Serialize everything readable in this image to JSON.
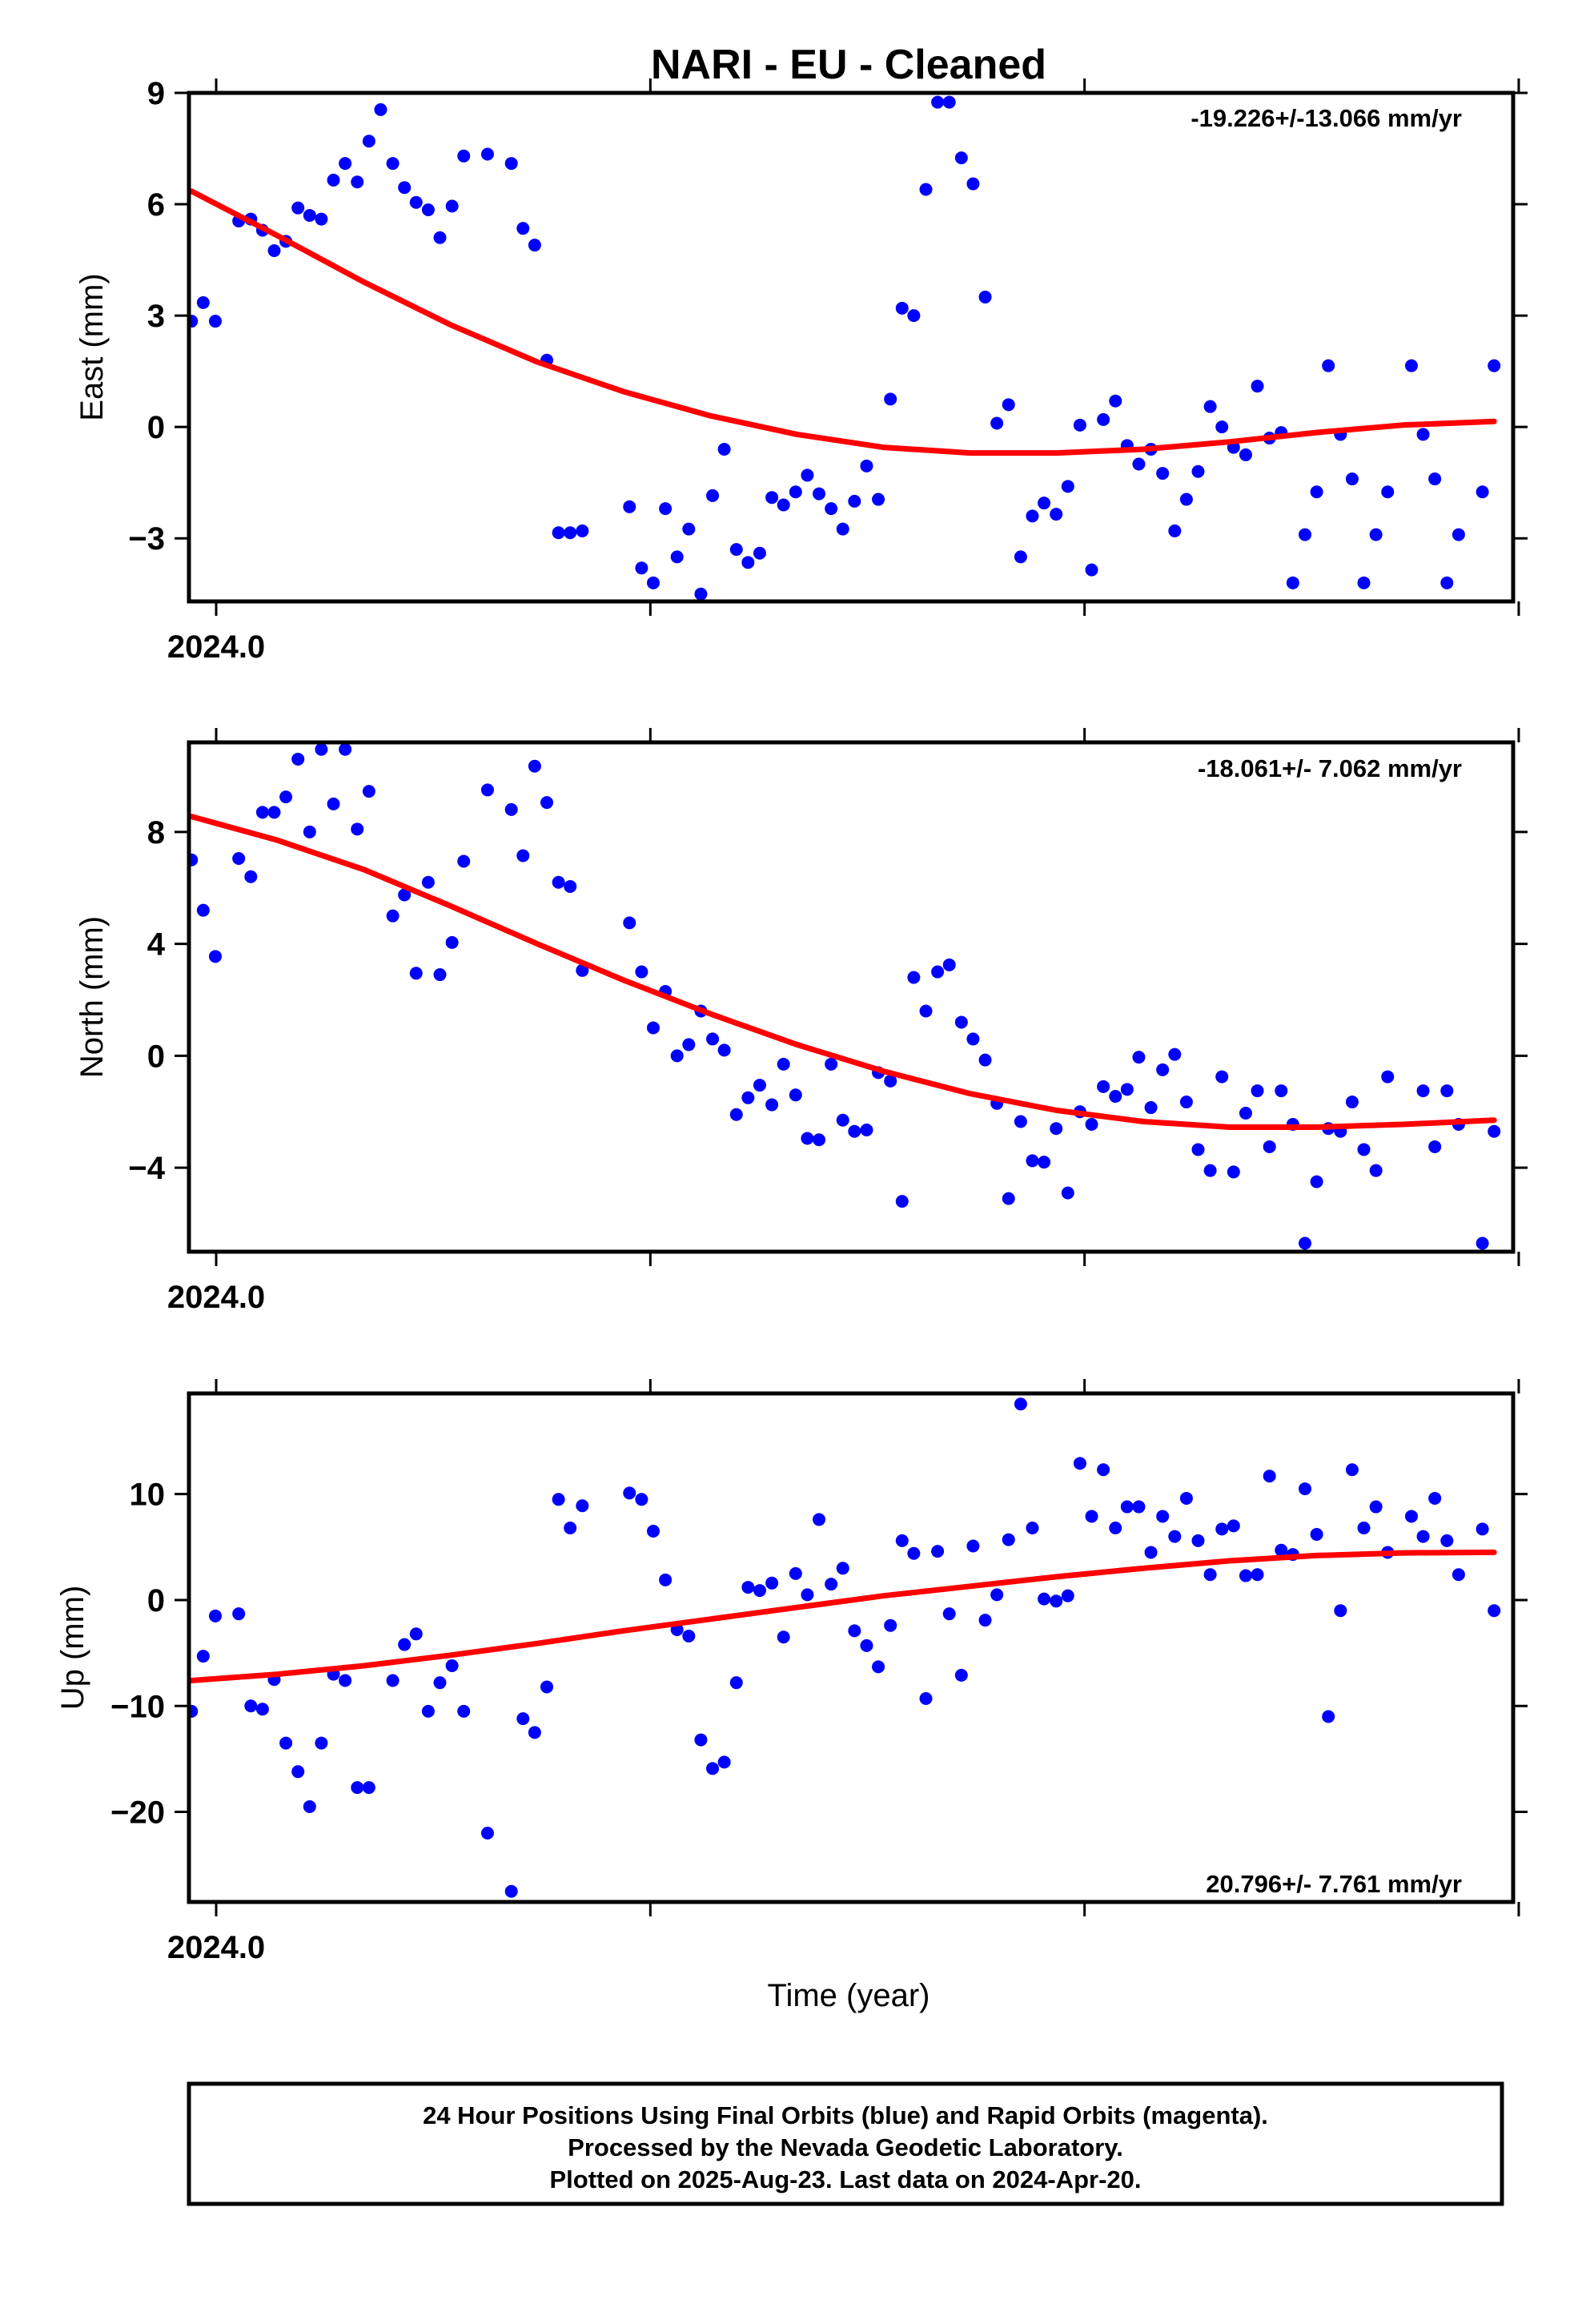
{
  "title": "NARI  - EU - Cleaned",
  "xlabel": "Time (year)",
  "footer_lines": [
    "24 Hour Positions Using Final Orbits (blue) and Rapid Orbits (magenta).",
    "Processed by the Nevada Geodetic Laboratory.",
    "Plotted on 2025-Aug-23. Last data on 2024-Apr-20."
  ],
  "colors": {
    "points": "#0000ff",
    "trend": "#ff0000",
    "frame": "#000000"
  },
  "chart_data": [
    {
      "type": "scatter",
      "ylabel": "East (mm)",
      "rate_label": "-19.226+/-13.066 mm/yr",
      "x_tick_label": "2024.0",
      "xlim": [
        2023.9995,
        2024.3055
      ],
      "ylim": [
        -4.7,
        9.0
      ],
      "yticks": [
        {
          "v": 9,
          "label": "9"
        },
        {
          "v": 6,
          "label": "6"
        },
        {
          "v": 3,
          "label": "3"
        },
        {
          "v": 0,
          "label": "0"
        },
        {
          "v": -3,
          "label": "−3"
        }
      ],
      "x": [
        2024.0001,
        2024.0028,
        2024.0056,
        2024.011,
        2024.0138,
        2024.0165,
        2024.0192,
        2024.0219,
        2024.0247,
        2024.0274,
        2024.0301,
        2024.0329,
        2024.0356,
        2024.0384,
        2024.0411,
        2024.0438,
        2024.0466,
        2024.0493,
        2024.052,
        2024.0548,
        2024.0575,
        2024.0603,
        2024.063,
        2024.0685,
        2024.074,
        2024.0767,
        2024.0794,
        2024.0822,
        2024.0849,
        2024.0876,
        2024.0904,
        2024.1013,
        2024.1041,
        2024.1068,
        2024.1096,
        2024.1123,
        2024.115,
        2024.1178,
        2024.1205,
        2024.1232,
        2024.126,
        2024.1287,
        2024.1314,
        2024.1342,
        2024.1369,
        2024.1397,
        2024.1424,
        2024.1451,
        2024.1479,
        2024.1506,
        2024.1533,
        2024.1561,
        2024.1588,
        2024.1616,
        2024.1643,
        2024.167,
        2024.1698,
        2024.1725,
        2024.1752,
        2024.178,
        2024.1807,
        2024.1835,
        2024.1862,
        2024.1889,
        2024.1917,
        2024.1944,
        2024.1971,
        2024.1999,
        2024.2026,
        2024.2054,
        2024.2081,
        2024.2108,
        2024.2136,
        2024.2163,
        2024.219,
        2024.2218,
        2024.2245,
        2024.2273,
        2024.23,
        2024.2327,
        2024.2355,
        2024.2382,
        2024.2409,
        2024.2437,
        2024.2464,
        2024.2492,
        2024.2519,
        2024.2546,
        2024.2574,
        2024.2601,
        2024.2628,
        2024.2656,
        2024.2683,
        2024.271,
        2024.2738,
        2024.2765,
        2024.282,
        2024.2847,
        2024.2874,
        2024.2902,
        2024.2929,
        2024.2984,
        2024.3011
      ],
      "y": [
        2.85,
        3.35,
        2.85,
        5.55,
        5.6,
        5.3,
        4.75,
        5.0,
        5.9,
        5.7,
        5.6,
        6.65,
        7.1,
        6.6,
        7.7,
        8.55,
        7.1,
        6.45,
        6.05,
        5.85,
        5.1,
        5.95,
        7.3,
        7.35,
        7.1,
        5.35,
        4.9,
        1.8,
        -2.85,
        -2.85,
        -2.8,
        -2.15,
        -3.8,
        -4.2,
        -2.2,
        -3.5,
        -2.75,
        -4.5,
        -1.85,
        -0.6,
        -3.3,
        -3.65,
        -3.4,
        -1.9,
        -2.1,
        -1.75,
        -1.3,
        -1.8,
        -2.2,
        -2.75,
        -2.0,
        -1.05,
        -1.95,
        0.75,
        3.2,
        3.0,
        6.4,
        8.75,
        8.75,
        7.25,
        6.55,
        3.5,
        0.1,
        0.6,
        -3.5,
        -2.4,
        -2.05,
        -2.35,
        -1.6,
        0.05,
        -3.85,
        0.2,
        0.7,
        -0.5,
        -1.0,
        -0.6,
        -1.25,
        -2.8,
        -1.95,
        -1.2,
        0.55,
        0.0,
        -0.55,
        -0.75,
        1.1,
        -0.3,
        -0.15,
        -4.2,
        -2.9,
        -1.75,
        1.65,
        -0.2,
        -1.4,
        -4.2,
        -2.9,
        -1.75,
        1.65,
        -0.2,
        -1.4,
        -4.2,
        -2.9,
        -1.75,
        1.65
      ],
      "trend_x": [
        2024.0001,
        2024.02,
        2024.04,
        2024.06,
        2024.08,
        2024.1,
        2024.12,
        2024.14,
        2024.16,
        2024.18,
        2024.2,
        2024.22,
        2024.24,
        2024.26,
        2024.28,
        2024.3011
      ],
      "trend_y": [
        6.35,
        5.15,
        3.9,
        2.75,
        1.75,
        0.95,
        0.3,
        -0.2,
        -0.55,
        -0.7,
        -0.7,
        -0.6,
        -0.4,
        -0.15,
        0.05,
        0.15
      ]
    },
    {
      "type": "scatter",
      "ylabel": "North (mm)",
      "rate_label": "-18.061+/- 7.062 mm/yr",
      "x_tick_label": "2024.0",
      "xlim": [
        2023.9995,
        2024.3055
      ],
      "ylim": [
        -7.0,
        11.2
      ],
      "yticks": [
        {
          "v": 8,
          "label": "8"
        },
        {
          "v": 4,
          "label": "4"
        },
        {
          "v": 0,
          "label": "0"
        },
        {
          "v": -4,
          "label": "−4"
        }
      ],
      "x": [
        2024.0001,
        2024.0028,
        2024.0056,
        2024.011,
        2024.0138,
        2024.0165,
        2024.0192,
        2024.0219,
        2024.0247,
        2024.0274,
        2024.0301,
        2024.0329,
        2024.0356,
        2024.0384,
        2024.0411,
        2024.0466,
        2024.0493,
        2024.052,
        2024.0548,
        2024.0575,
        2024.0603,
        2024.063,
        2024.0685,
        2024.074,
        2024.0767,
        2024.0794,
        2024.0822,
        2024.0849,
        2024.0876,
        2024.0904,
        2024.1013,
        2024.1041,
        2024.1068,
        2024.1096,
        2024.1123,
        2024.115,
        2024.1178,
        2024.1205,
        2024.1232,
        2024.126,
        2024.1287,
        2024.1314,
        2024.1342,
        2024.1369,
        2024.1397,
        2024.1424,
        2024.1451,
        2024.1479,
        2024.1506,
        2024.1533,
        2024.1561,
        2024.1588,
        2024.1616,
        2024.1643,
        2024.167,
        2024.1698,
        2024.1725,
        2024.1752,
        2024.178,
        2024.1807,
        2024.1835,
        2024.1862,
        2024.1889,
        2024.1917,
        2024.1944,
        2024.1971,
        2024.1999,
        2024.2026,
        2024.2054,
        2024.2081,
        2024.2108,
        2024.2136,
        2024.2163,
        2024.219,
        2024.2218,
        2024.2245,
        2024.2273,
        2024.23,
        2024.2327,
        2024.2355,
        2024.2382,
        2024.2409,
        2024.2437,
        2024.2464,
        2024.2492,
        2024.2519,
        2024.2546,
        2024.2574,
        2024.2601,
        2024.2628,
        2024.2656,
        2024.2683,
        2024.271,
        2024.2738,
        2024.2765,
        2024.2847,
        2024.2874,
        2024.2902,
        2024.2929,
        2024.2984,
        2024.3011
      ],
      "y": [
        7.0,
        5.2,
        3.55,
        7.05,
        6.4,
        8.7,
        8.7,
        9.25,
        10.6,
        8.0,
        10.95,
        9.0,
        10.95,
        8.1,
        9.45,
        5.0,
        5.75,
        2.95,
        6.2,
        2.9,
        4.05,
        6.95,
        9.5,
        8.8,
        7.15,
        10.35,
        9.05,
        6.2,
        6.05,
        3.05,
        4.75,
        3.0,
        1.0,
        2.3,
        0.0,
        0.4,
        1.6,
        0.6,
        0.2,
        -2.1,
        -1.5,
        -1.05,
        -1.75,
        -0.3,
        -1.4,
        -2.95,
        -3.0,
        -0.3,
        -2.3,
        -2.7,
        -2.65,
        -0.6,
        -0.9,
        -5.2,
        2.8,
        1.6,
        3.0,
        3.25,
        1.2,
        0.6,
        -0.15,
        -1.7,
        -5.1,
        -2.35,
        -3.75,
        -3.8,
        -2.6,
        -4.9,
        -2.0,
        -2.45,
        -1.1,
        -1.45,
        -1.2,
        -0.05,
        -1.85,
        -0.5,
        0.05,
        -1.65,
        -3.35,
        -4.1,
        -0.75,
        -4.15,
        -2.05,
        -1.25,
        -3.25,
        -1.25,
        -2.45,
        -6.7,
        -4.5,
        -2.6,
        -2.7,
        -1.65,
        -3.35,
        -4.1,
        -0.75,
        -1.25,
        -3.25,
        -1.25,
        -2.45,
        -6.7,
        -2.7
      ],
      "trend_x": [
        2024.0001,
        2024.02,
        2024.04,
        2024.06,
        2024.08,
        2024.1,
        2024.12,
        2024.14,
        2024.16,
        2024.18,
        2024.2,
        2024.22,
        2024.24,
        2024.26,
        2024.28,
        2024.3011
      ],
      "trend_y": [
        8.55,
        7.7,
        6.65,
        5.35,
        4.0,
        2.7,
        1.5,
        0.4,
        -0.55,
        -1.35,
        -1.95,
        -2.35,
        -2.55,
        -2.55,
        -2.45,
        -2.3
      ]
    },
    {
      "type": "scatter",
      "ylabel": "Up (mm)",
      "rate_label": "20.796+/- 7.761 mm/yr",
      "x_tick_label": "2024.0",
      "xlim": [
        2023.9995,
        2024.3055
      ],
      "ylim": [
        -28.5,
        19.5
      ],
      "yticks": [
        {
          "v": 10,
          "label": "10"
        },
        {
          "v": 0,
          "label": "0"
        },
        {
          "v": -10,
          "label": "−10"
        },
        {
          "v": -20,
          "label": "−20"
        }
      ],
      "x": [
        2024.0001,
        2024.0028,
        2024.0056,
        2024.011,
        2024.0138,
        2024.0165,
        2024.0192,
        2024.0219,
        2024.0247,
        2024.0274,
        2024.0301,
        2024.0329,
        2024.0356,
        2024.0384,
        2024.0411,
        2024.0466,
        2024.0493,
        2024.052,
        2024.0548,
        2024.0575,
        2024.0603,
        2024.063,
        2024.0685,
        2024.074,
        2024.0767,
        2024.0794,
        2024.0822,
        2024.0849,
        2024.0876,
        2024.0904,
        2024.1013,
        2024.1041,
        2024.1068,
        2024.1096,
        2024.1123,
        2024.115,
        2024.1178,
        2024.1205,
        2024.1232,
        2024.126,
        2024.1287,
        2024.1314,
        2024.1342,
        2024.1369,
        2024.1397,
        2024.1424,
        2024.1451,
        2024.1479,
        2024.1506,
        2024.1533,
        2024.1561,
        2024.1588,
        2024.1616,
        2024.1643,
        2024.167,
        2024.1698,
        2024.1725,
        2024.1752,
        2024.178,
        2024.1807,
        2024.1835,
        2024.1862,
        2024.1889,
        2024.1917,
        2024.1944,
        2024.1971,
        2024.1999,
        2024.2026,
        2024.2054,
        2024.2081,
        2024.2108,
        2024.2136,
        2024.2163,
        2024.219,
        2024.2218,
        2024.2245,
        2024.2273,
        2024.23,
        2024.2327,
        2024.2355,
        2024.2382,
        2024.2409,
        2024.2437,
        2024.2464,
        2024.2492,
        2024.2519,
        2024.2546,
        2024.2574,
        2024.2601,
        2024.2628,
        2024.2656,
        2024.2683,
        2024.271,
        2024.2738,
        2024.2765,
        2024.282,
        2024.2847,
        2024.2874,
        2024.2902,
        2024.2929,
        2024.2984,
        2024.3011
      ],
      "y": [
        -10.5,
        -5.3,
        -1.5,
        -1.3,
        -10.0,
        -10.3,
        -7.5,
        -13.5,
        -16.2,
        -19.5,
        -13.5,
        -7.0,
        -7.6,
        -17.7,
        -17.7,
        -7.6,
        -4.2,
        -3.2,
        -10.5,
        -7.8,
        -6.2,
        -10.5,
        -22.0,
        -27.5,
        -11.2,
        -12.5,
        -8.2,
        9.5,
        6.8,
        8.9,
        10.1,
        9.5,
        6.5,
        1.9,
        -2.8,
        -3.4,
        -13.2,
        -15.9,
        -15.3,
        -7.8,
        1.2,
        0.9,
        1.6,
        -3.5,
        2.5,
        0.5,
        7.6,
        1.5,
        3.0,
        -2.9,
        -4.3,
        -6.3,
        -2.4,
        5.6,
        4.4,
        -9.3,
        4.6,
        -1.3,
        -7.1,
        5.1,
        -1.9,
        0.5,
        5.7,
        18.5,
        6.8,
        0.1,
        -0.1,
        0.4,
        12.9,
        7.9,
        12.3,
        6.8,
        8.8,
        8.8,
        4.5,
        7.9,
        6.0,
        9.6,
        5.6,
        2.4,
        6.7,
        7.0,
        2.3,
        2.4,
        11.7,
        4.7,
        4.3,
        10.5,
        6.2,
        -11.0,
        -1.0,
        12.3,
        6.8,
        8.8,
        4.5,
        7.9,
        6.0,
        9.6,
        5.6,
        2.4,
        6.7,
        -1.0
      ],
      "trend_x": [
        2024.0001,
        2024.02,
        2024.04,
        2024.06,
        2024.08,
        2024.1,
        2024.12,
        2024.14,
        2024.16,
        2024.18,
        2024.2,
        2024.22,
        2024.24,
        2024.26,
        2024.28,
        2024.3011
      ],
      "trend_y": [
        -7.6,
        -7.0,
        -6.2,
        -5.2,
        -4.1,
        -2.9,
        -1.8,
        -0.7,
        0.4,
        1.3,
        2.2,
        3.0,
        3.7,
        4.2,
        4.45,
        4.5
      ]
    }
  ]
}
